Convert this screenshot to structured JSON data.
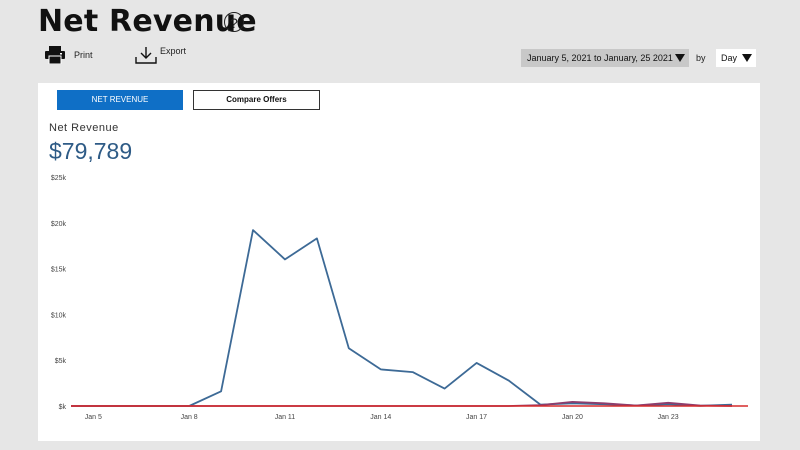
{
  "header": {
    "title": "Net Revenue",
    "help_glyph": "?",
    "help_icon": "question-circle-icon"
  },
  "toolbar": {
    "print_label": "Print",
    "print_icon": "printer-icon",
    "export_label": "Export",
    "export_icon": "download-icon"
  },
  "filters": {
    "date_range": "January 5, 2021 to January, 25 2021",
    "by_label": "by",
    "period": "Day"
  },
  "tabs": [
    {
      "label": "NET REVENUE",
      "active": true
    },
    {
      "label": "Compare Offers",
      "active": false
    }
  ],
  "metric": {
    "label": "Net Revenue",
    "value": "$79,789"
  },
  "colors": {
    "accent": "#0f6fc6",
    "series_main": "#3d6a96",
    "series_secondary": "#8e3d6c",
    "series_baseline": "#d62b2b"
  },
  "chart_data": {
    "type": "line",
    "ylim": [
      0,
      25000
    ],
    "y_ticks": [
      {
        "value": 0,
        "label": "$k"
      },
      {
        "value": 5000,
        "label": "$5k"
      },
      {
        "value": 10000,
        "label": "$10k"
      },
      {
        "value": 15000,
        "label": "$15k"
      },
      {
        "value": 20000,
        "label": "$20k"
      },
      {
        "value": 25000,
        "label": "$25k"
      }
    ],
    "x_ticks": [
      {
        "day": 5,
        "label": "Jan 5"
      },
      {
        "day": 8,
        "label": "Jan 8"
      },
      {
        "day": 11,
        "label": "Jan 11"
      },
      {
        "day": 14,
        "label": "Jan 14"
      },
      {
        "day": 17,
        "label": "Jan 17"
      },
      {
        "day": 20,
        "label": "Jan 20"
      },
      {
        "day": 23,
        "label": "Jan 23"
      }
    ],
    "x_start_day": 4.3,
    "x_end_day": 25.5,
    "grid": false,
    "series": [
      {
        "color": "#3d6a96",
        "x": [
          4.3,
          5,
          6,
          7,
          8,
          9,
          10,
          11,
          12,
          13,
          14,
          15,
          16,
          17,
          18,
          19,
          20,
          21,
          22,
          23,
          24,
          25
        ],
        "values": [
          0,
          0,
          0,
          0,
          0,
          1600,
          19200,
          16000,
          18300,
          6300,
          4000,
          3700,
          1900,
          4700,
          2800,
          150,
          300,
          200,
          50,
          200,
          20,
          150
        ]
      },
      {
        "color": "#8e3d6c",
        "x": [
          4.3,
          5,
          6,
          7,
          8,
          9,
          10,
          11,
          12,
          13,
          14,
          15,
          16,
          17,
          18,
          19,
          20,
          21,
          22,
          23,
          24,
          25
        ],
        "values": [
          0,
          0,
          0,
          0,
          0,
          0,
          0,
          0,
          0,
          0,
          0,
          0,
          0,
          0,
          0,
          100,
          450,
          300,
          50,
          350,
          50,
          0
        ]
      },
      {
        "color": "#d62b2b",
        "x": [
          4.3,
          25.5
        ],
        "values": [
          0,
          0
        ]
      }
    ]
  }
}
